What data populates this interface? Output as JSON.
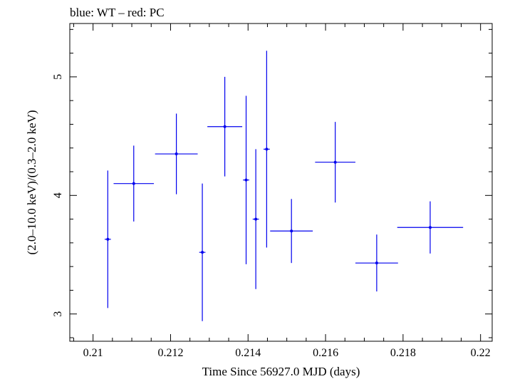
{
  "chart_data": {
    "type": "scatter",
    "title": "blue: WT – red: PC",
    "xlabel": "Time Since 56927.0 MJD (days)",
    "ylabel": "(2.0–10.0 keV)/(0.3–2.0 keV)",
    "xlim": [
      0.2094,
      0.2203
    ],
    "ylim": [
      2.77,
      5.45
    ],
    "xticks": [
      0.21,
      0.212,
      0.214,
      0.216,
      0.218,
      0.22
    ],
    "xtick_labels": [
      "0.21",
      "0.212",
      "0.214",
      "0.216",
      "0.218",
      "0.22"
    ],
    "yticks": [
      3,
      4,
      5
    ],
    "ytick_labels": [
      "3",
      "4",
      "5"
    ],
    "grid": false,
    "colors": {
      "WT": "#0000ee",
      "PC": "#ff0000"
    },
    "series": [
      {
        "name": "WT",
        "points": [
          {
            "x": 0.21038,
            "y": 3.63,
            "xerr": 8e-05,
            "yerr_low": 0.58,
            "yerr_high": 0.58
          },
          {
            "x": 0.21105,
            "y": 4.1,
            "xerr": 0.00052,
            "yerr_low": 0.32,
            "yerr_high": 0.32
          },
          {
            "x": 0.21215,
            "y": 4.35,
            "xerr": 0.00055,
            "yerr_low": 0.34,
            "yerr_high": 0.34
          },
          {
            "x": 0.21282,
            "y": 3.52,
            "xerr": 8e-05,
            "yerr_low": 0.58,
            "yerr_high": 0.58
          },
          {
            "x": 0.2134,
            "y": 4.58,
            "xerr": 0.00045,
            "yerr_low": 0.42,
            "yerr_high": 0.42
          },
          {
            "x": 0.21395,
            "y": 4.13,
            "xerr": 8e-05,
            "yerr_low": 0.71,
            "yerr_high": 0.71
          },
          {
            "x": 0.2142,
            "y": 3.8,
            "xerr": 8e-05,
            "yerr_low": 0.59,
            "yerr_high": 0.59
          },
          {
            "x": 0.21448,
            "y": 4.39,
            "xerr": 8e-05,
            "yerr_low": 0.83,
            "yerr_high": 0.83
          },
          {
            "x": 0.21512,
            "y": 3.7,
            "xerr": 0.00055,
            "yerr_low": 0.27,
            "yerr_high": 0.27
          },
          {
            "x": 0.21625,
            "y": 4.28,
            "xerr": 0.00052,
            "yerr_low": 0.34,
            "yerr_high": 0.34
          },
          {
            "x": 0.21732,
            "y": 3.43,
            "xerr": 0.00055,
            "yerr_low": 0.24,
            "yerr_high": 0.24
          },
          {
            "x": 0.2187,
            "y": 3.73,
            "xerr": 0.00085,
            "yerr_low": 0.22,
            "yerr_high": 0.22
          }
        ]
      }
    ]
  }
}
